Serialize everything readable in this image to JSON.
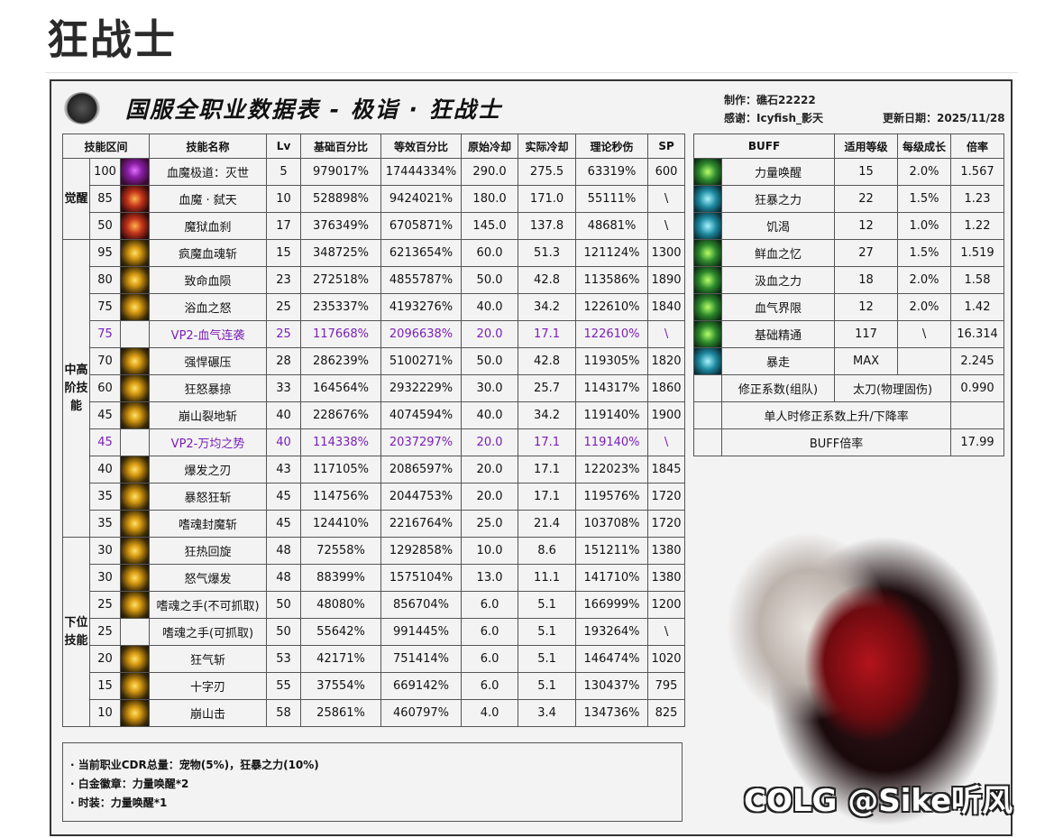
{
  "page_title": "狂战士",
  "sheet": {
    "title": "国服全职业数据表 - 极诣 · 狂战士",
    "author": "制作：礁石22222",
    "thanks": "感谢：Icyfish_影天",
    "updated": "更新日期：2025/11/28"
  },
  "skills": {
    "headers": [
      "技能区间",
      "技能名称",
      "Lv",
      "基础百分比",
      "等效百分比",
      "原始冷却",
      "实际冷却",
      "理论秒伤",
      "SP"
    ],
    "groups": [
      {
        "label": "觉醒",
        "rows": [
          {
            "level": "100",
            "icon": "awk1",
            "name": "血魔极道：灭世",
            "lv": "5",
            "base": "979017%",
            "equiv": "17444334%",
            "cd": "290.0",
            "real_cd": "275.5",
            "dps": "63319%",
            "sp": "600"
          },
          {
            "level": "85",
            "icon": "awk2",
            "name": "血魔 · 弑天",
            "lv": "10",
            "base": "528898%",
            "equiv": "9424021%",
            "cd": "180.0",
            "real_cd": "171.0",
            "dps": "55111%",
            "sp": "\\"
          },
          {
            "level": "50",
            "icon": "awk2",
            "name": "魔狱血刹",
            "lv": "17",
            "base": "376349%",
            "equiv": "6705871%",
            "cd": "145.0",
            "real_cd": "137.8",
            "dps": "48681%",
            "sp": "\\"
          }
        ]
      },
      {
        "label": "中高阶技能",
        "rows": [
          {
            "level": "95",
            "icon": "gold",
            "name": "疯魔血魂斩",
            "lv": "15",
            "base": "348725%",
            "equiv": "6213654%",
            "cd": "60.0",
            "real_cd": "51.3",
            "dps": "121124%",
            "sp": "1300"
          },
          {
            "level": "80",
            "icon": "gold",
            "name": "致命血陨",
            "lv": "23",
            "base": "272518%",
            "equiv": "4855787%",
            "cd": "50.0",
            "real_cd": "42.8",
            "dps": "113586%",
            "sp": "1890"
          },
          {
            "level": "75",
            "icon": "gold",
            "name": "浴血之怒",
            "lv": "25",
            "base": "235337%",
            "equiv": "4193276%",
            "cd": "40.0",
            "real_cd": "34.2",
            "dps": "122610%",
            "sp": "1840"
          },
          {
            "level": "75",
            "icon": "none",
            "name": "VP2-血气连袭",
            "lv": "25",
            "base": "117668%",
            "equiv": "2096638%",
            "cd": "20.0",
            "real_cd": "17.1",
            "dps": "122610%",
            "sp": "\\",
            "highlight": true
          },
          {
            "level": "70",
            "icon": "gold",
            "name": "强悍碾压",
            "lv": "28",
            "base": "286239%",
            "equiv": "5100271%",
            "cd": "50.0",
            "real_cd": "42.8",
            "dps": "119305%",
            "sp": "1820"
          },
          {
            "level": "60",
            "icon": "gold",
            "name": "狂怒暴掠",
            "lv": "33",
            "base": "164564%",
            "equiv": "2932229%",
            "cd": "30.0",
            "real_cd": "25.7",
            "dps": "114317%",
            "sp": "1860"
          },
          {
            "level": "45",
            "icon": "gold",
            "name": "崩山裂地斩",
            "lv": "40",
            "base": "228676%",
            "equiv": "4074594%",
            "cd": "40.0",
            "real_cd": "34.2",
            "dps": "119140%",
            "sp": "1900"
          },
          {
            "level": "45",
            "icon": "none",
            "name": "VP2-万均之势",
            "lv": "40",
            "base": "114338%",
            "equiv": "2037297%",
            "cd": "20.0",
            "real_cd": "17.1",
            "dps": "119140%",
            "sp": "\\",
            "highlight": true
          },
          {
            "level": "40",
            "icon": "gold",
            "name": "爆发之刃",
            "lv": "43",
            "base": "117105%",
            "equiv": "2086597%",
            "cd": "20.0",
            "real_cd": "17.1",
            "dps": "122023%",
            "sp": "1845"
          },
          {
            "level": "35",
            "icon": "gold",
            "name": "暴怒狂斩",
            "lv": "45",
            "base": "114756%",
            "equiv": "2044753%",
            "cd": "20.0",
            "real_cd": "17.1",
            "dps": "119576%",
            "sp": "1720"
          },
          {
            "level": "35",
            "icon": "gold",
            "name": "嗜魂封魔斩",
            "lv": "45",
            "base": "124410%",
            "equiv": "2216764%",
            "cd": "25.0",
            "real_cd": "21.4",
            "dps": "103708%",
            "sp": "1720"
          }
        ]
      },
      {
        "label": "下位技能",
        "rows": [
          {
            "level": "30",
            "icon": "gold",
            "name": "狂热回旋",
            "lv": "48",
            "base": "72558%",
            "equiv": "1292858%",
            "cd": "10.0",
            "real_cd": "8.6",
            "dps": "151211%",
            "sp": "1380"
          },
          {
            "level": "30",
            "icon": "gold",
            "name": "怒气爆发",
            "lv": "48",
            "base": "88399%",
            "equiv": "1575104%",
            "cd": "13.0",
            "real_cd": "11.1",
            "dps": "141710%",
            "sp": "1380"
          },
          {
            "level": "25",
            "icon": "gold",
            "name": "嗜魂之手(不可抓取)",
            "lv": "50",
            "base": "48080%",
            "equiv": "856704%",
            "cd": "6.0",
            "real_cd": "5.1",
            "dps": "166999%",
            "sp": "1200"
          },
          {
            "level": "25",
            "icon": "none",
            "name": "嗜魂之手(可抓取)",
            "lv": "50",
            "base": "55642%",
            "equiv": "991445%",
            "cd": "6.0",
            "real_cd": "5.1",
            "dps": "193264%",
            "sp": "\\"
          },
          {
            "level": "20",
            "icon": "gold",
            "name": "狂气斩",
            "lv": "53",
            "base": "42171%",
            "equiv": "751414%",
            "cd": "6.0",
            "real_cd": "5.1",
            "dps": "146474%",
            "sp": "1020"
          },
          {
            "level": "15",
            "icon": "gold",
            "name": "十字刃",
            "lv": "55",
            "base": "37554%",
            "equiv": "669142%",
            "cd": "6.0",
            "real_cd": "5.1",
            "dps": "130437%",
            "sp": "795"
          },
          {
            "level": "10",
            "icon": "gold",
            "name": "崩山击",
            "lv": "58",
            "base": "25861%",
            "equiv": "460797%",
            "cd": "4.0",
            "real_cd": "3.4",
            "dps": "134736%",
            "sp": "825"
          }
        ]
      }
    ],
    "highlight_color": "#7a1fb8"
  },
  "buffs": {
    "headers": [
      "BUFF",
      "适用等级",
      "每级成长",
      "倍率"
    ],
    "rows": [
      {
        "icon": "green",
        "name": "力量唤醒",
        "level": "15",
        "growth": "2.0%",
        "rate": "1.567"
      },
      {
        "icon": "teal",
        "name": "狂暴之力",
        "level": "22",
        "growth": "1.5%",
        "rate": "1.23"
      },
      {
        "icon": "teal",
        "name": "饥渴",
        "level": "12",
        "growth": "1.0%",
        "rate": "1.22"
      },
      {
        "icon": "green",
        "name": "鲜血之忆",
        "level": "27",
        "growth": "1.5%",
        "rate": "1.519"
      },
      {
        "icon": "green",
        "name": "汲血之力",
        "level": "18",
        "growth": "2.0%",
        "rate": "1.58"
      },
      {
        "icon": "green",
        "name": "血气界限",
        "level": "12",
        "growth": "2.0%",
        "rate": "1.42"
      },
      {
        "icon": "green",
        "name": "基础精通",
        "level": "117",
        "growth": "\\",
        "rate": "16.314"
      },
      {
        "icon": "teal",
        "name": "暴走",
        "level": "MAX",
        "growth": "",
        "rate": "2.245"
      }
    ],
    "correction": {
      "label": "修正系数(组队)",
      "weapon": "太刀(物理固伤)",
      "value": "0.990"
    },
    "solo_note": "单人时修正系数上升/下降率",
    "total": {
      "label": "BUFF倍率",
      "value": "17.99"
    }
  },
  "notes": [
    "· 当前职业CDR总量：宠物(5%)，狂暴之力(10%)",
    "· 白金徽章：力量唤醒*2",
    "· 时装：力量唤醒*1"
  ],
  "watermark": "COLG @Sike听风"
}
